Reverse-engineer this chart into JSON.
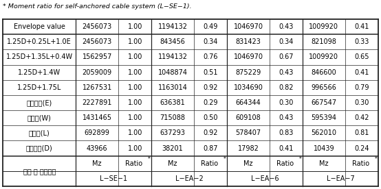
{
  "footnote": "* Moment ratio for self-anchored cable system (L−SE−1).",
  "col_groups": [
    "L−SE−1",
    "L−EA−2",
    "L−EA−6",
    "L−EA−7"
  ],
  "row_header": "하중 및 하중조합",
  "rows": [
    [
      "고정하중(D)",
      "43966",
      "1.00",
      "38201",
      "0.87",
      "17982",
      "0.41",
      "10439",
      "0.24"
    ],
    [
      "활하중(L)",
      "692899",
      "1.00",
      "637293",
      "0.92",
      "578407",
      "0.83",
      "562010",
      "0.81"
    ],
    [
      "풍하중(W)",
      "1431465",
      "1.00",
      "715088",
      "0.50",
      "609108",
      "0.43",
      "595394",
      "0.42"
    ],
    [
      "지진하중(E)",
      "2227891",
      "1.00",
      "636381",
      "0.29",
      "664344",
      "0.30",
      "667547",
      "0.30"
    ],
    [
      "1.25D+1.75L",
      "1267531",
      "1.00",
      "1163014",
      "0.92",
      "1034690",
      "0.82",
      "996566",
      "0.79"
    ],
    [
      "1.25D+1.4W",
      "2059009",
      "1.00",
      "1048874",
      "0.51",
      "875229",
      "0.43",
      "846600",
      "0.41"
    ],
    [
      "1.25D+1.35L+0.4W",
      "1562957",
      "1.00",
      "1194132",
      "0.76",
      "1046970",
      "0.67",
      "1009920",
      "0.65"
    ],
    [
      "1.25D+0.25L+1.0E",
      "2456073",
      "1.00",
      "843456",
      "0.34",
      "831423",
      "0.34",
      "821098",
      "0.33"
    ],
    [
      "Envelope value",
      "2456073",
      "1.00",
      "1194132",
      "0.49",
      "1046970",
      "0.43",
      "1009920",
      "0.41"
    ]
  ],
  "bg_color": "#ffffff",
  "text_color": "#000000",
  "font_size": 7.0,
  "footnote_font_size": 6.8
}
